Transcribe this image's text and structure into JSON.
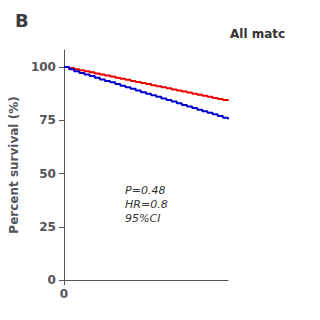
{
  "chart_data": {
    "type": "step",
    "title": "B",
    "subtitle": "All matc",
    "ylabel": "Percent survival (%)",
    "annotation": "P=0.48\nHR=0.8\n95%CI",
    "x": [
      0,
      6,
      12,
      18,
      24,
      30,
      36,
      42,
      48,
      54,
      60,
      66,
      72,
      78,
      84,
      90,
      96,
      102,
      108,
      114,
      120,
      126,
      132,
      138,
      144,
      150,
      156,
      162,
      168,
      174,
      180,
      186,
      192
    ],
    "series": [
      {
        "color": "#EE0000",
        "values": [
          100,
          99.5,
          99.0,
          98.5,
          98.0,
          97.5,
          97.0,
          96.5,
          96.0,
          95.5,
          95.0,
          94.5,
          94.0,
          93.5,
          93.0,
          92.5,
          92.0,
          91.5,
          91.0,
          90.5,
          90.0,
          89.5,
          89.0,
          88.5,
          88.0,
          87.5,
          87.0,
          86.5,
          86.0,
          85.5,
          85.0,
          84.5,
          84.0
        ]
      },
      {
        "color": "#0000CC",
        "values": [
          100,
          99.0,
          98.0,
          97.2,
          96.5,
          95.8,
          95.0,
          94.2,
          93.5,
          92.8,
          92.0,
          91.2,
          90.5,
          89.8,
          89.0,
          88.2,
          87.5,
          86.8,
          86.0,
          85.2,
          84.5,
          83.8,
          83.0,
          82.2,
          81.5,
          80.8,
          80.0,
          79.2,
          78.5,
          77.8,
          77.0,
          76.2,
          75.5
        ]
      }
    ],
    "xlim": [
      0,
      192
    ],
    "ylim": [
      0,
      108
    ],
    "xticks": [
      0
    ],
    "yticks": [
      0,
      25,
      50,
      75,
      100
    ],
    "grid": false
  }
}
